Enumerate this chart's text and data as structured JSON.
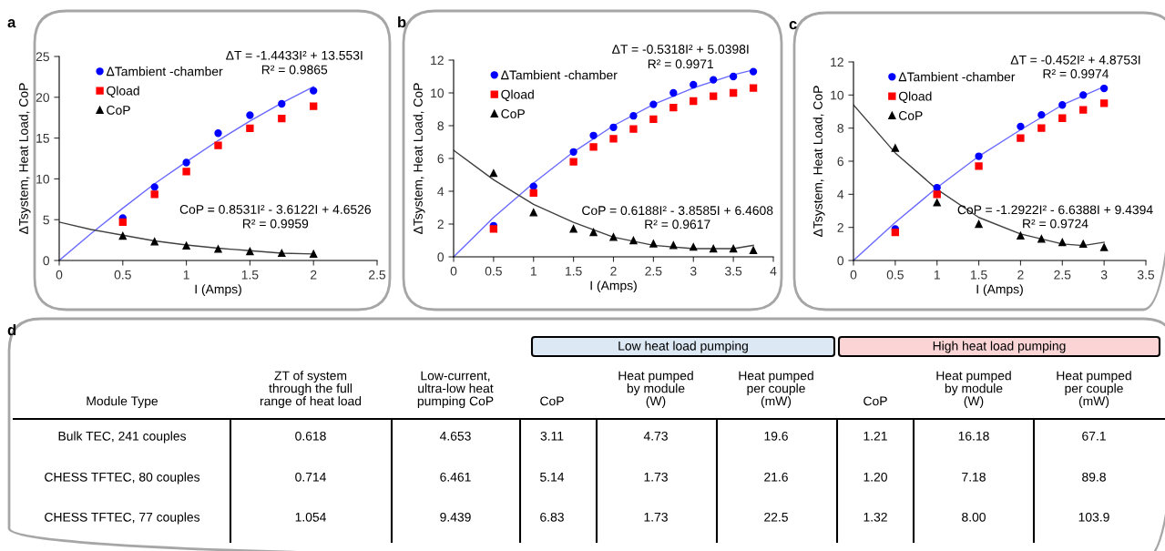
{
  "chart_data": [
    {
      "type": "scatter",
      "title": "a",
      "xlabel": "I (Amps)",
      "ylabel": "ΔTsystem, Heat Load, CoP",
      "xlim": [
        0,
        2.5
      ],
      "xticks": [
        0,
        0.5,
        1,
        1.5,
        2,
        2.5
      ],
      "ylim": [
        0,
        25
      ],
      "yticks": [
        0,
        5,
        10,
        15,
        20,
        25
      ],
      "legend": "top left",
      "grid": false,
      "x": [
        0.5,
        0.75,
        1,
        1.25,
        1.5,
        1.75,
        2
      ],
      "series": [
        {
          "name": "ΔTambient -chamber",
          "color": "#0000ff",
          "marker": "circle",
          "values": [
            5.2,
            9.0,
            12.0,
            15.6,
            17.8,
            19.2,
            20.8
          ]
        },
        {
          "name": "Qload",
          "color": "#ff0000",
          "marker": "square",
          "values": [
            4.7,
            8.1,
            10.9,
            14.1,
            16.2,
            17.4,
            18.9
          ]
        },
        {
          "name": "CoP",
          "color": "#000000",
          "marker": "triangle",
          "values": [
            3.0,
            2.3,
            1.8,
            1.4,
            1.1,
            0.9,
            0.8
          ]
        },
        {
          "type": "line",
          "color": "#6a6aff",
          "marker": "none",
          "x": [
            0,
            0.25,
            0.5,
            0.75,
            1,
            1.25,
            1.5,
            1.75,
            2
          ],
          "values": [
            0,
            3.3,
            6.4,
            9.4,
            12.1,
            14.7,
            17.1,
            19.3,
            21.3
          ]
        },
        {
          "type": "line",
          "color": "#404040",
          "marker": "none",
          "x": [
            0,
            0.25,
            0.5,
            0.75,
            1,
            1.25,
            1.5,
            1.75,
            2
          ],
          "values": [
            4.7,
            3.8,
            3.1,
            2.4,
            1.9,
            1.5,
            1.2,
            0.9,
            0.8
          ]
        }
      ],
      "annotations": [
        "ΔT = -1.4433I² + 13.553I",
        "R² = 0.9865",
        "CoP = 0.8531I² - 3.6122I + 4.6526",
        "R² = 0.9959"
      ]
    },
    {
      "type": "scatter",
      "title": "b",
      "xlabel": "I (Amps)",
      "ylabel": "ΔTsystem, Heat Load, CoP",
      "xlim": [
        0,
        4
      ],
      "xticks": [
        0,
        0.5,
        1,
        1.5,
        2,
        2.5,
        3,
        3.5,
        4
      ],
      "ylim": [
        0,
        12
      ],
      "yticks": [
        0,
        2,
        4,
        6,
        8,
        10,
        12
      ],
      "legend": "top left",
      "grid": false,
      "x": [
        0.5,
        1,
        1.5,
        1.75,
        2,
        2.25,
        2.5,
        2.75,
        3,
        3.25,
        3.5,
        3.75
      ],
      "series": [
        {
          "name": "ΔTambient -chamber",
          "color": "#0000ff",
          "marker": "circle",
          "values": [
            1.9,
            4.3,
            6.4,
            7.4,
            7.9,
            8.6,
            9.3,
            10.0,
            10.5,
            10.8,
            11.0,
            11.3
          ]
        },
        {
          "name": "Qload",
          "color": "#ff0000",
          "marker": "square",
          "values": [
            1.7,
            3.9,
            5.8,
            6.7,
            7.2,
            7.8,
            8.4,
            9.1,
            9.5,
            9.8,
            10.0,
            10.3
          ]
        },
        {
          "name": "CoP",
          "color": "#000000",
          "marker": "triangle",
          "values": [
            5.1,
            2.7,
            1.7,
            1.5,
            1.2,
            1.0,
            0.8,
            0.7,
            0.6,
            0.5,
            0.5,
            0.4
          ]
        },
        {
          "type": "line",
          "color": "#6a6aff",
          "marker": "none",
          "x": [
            0,
            0.5,
            1,
            1.5,
            2,
            2.5,
            3,
            3.5,
            3.75
          ],
          "values": [
            0,
            2.4,
            4.5,
            6.4,
            8.0,
            9.3,
            10.3,
            11.1,
            11.4
          ]
        },
        {
          "type": "line",
          "color": "#404040",
          "marker": "none",
          "x": [
            0,
            0.5,
            1,
            1.5,
            2,
            2.5,
            3,
            3.5,
            3.75
          ],
          "values": [
            6.5,
            4.7,
            3.2,
            2.1,
            1.2,
            0.7,
            0.5,
            0.5,
            0.7
          ]
        }
      ],
      "annotations": [
        "ΔT = -0.5318I² + 5.0398I",
        "R² = 0.9971",
        "CoP = 0.6188I² - 3.8585I + 6.4608",
        "R² = 0.9617"
      ]
    },
    {
      "type": "scatter",
      "title": "c",
      "xlabel": "I (Amps)",
      "ylabel": "ΔTsystem, Heat Load, CoP",
      "xlim": [
        0,
        3.5
      ],
      "xticks": [
        0,
        0.5,
        1,
        1.5,
        2,
        2.5,
        3,
        3.5
      ],
      "ylim": [
        0,
        12
      ],
      "yticks": [
        0,
        2,
        4,
        6,
        8,
        10,
        12
      ],
      "legend": "top left",
      "grid": false,
      "x": [
        0.5,
        1,
        1.5,
        2,
        2.25,
        2.5,
        2.75,
        3
      ],
      "series": [
        {
          "name": "ΔTambient -chamber",
          "color": "#0000ff",
          "marker": "circle",
          "values": [
            1.9,
            4.4,
            6.3,
            8.1,
            8.8,
            9.4,
            10.0,
            10.4
          ]
        },
        {
          "name": "Qload",
          "color": "#ff0000",
          "marker": "square",
          "values": [
            1.7,
            4.0,
            5.7,
            7.4,
            8.0,
            8.6,
            9.1,
            9.5
          ]
        },
        {
          "name": "CoP",
          "color": "#000000",
          "marker": "triangle",
          "values": [
            6.8,
            3.5,
            2.2,
            1.5,
            1.3,
            1.1,
            1.0,
            0.8
          ]
        },
        {
          "type": "line",
          "color": "#6a6aff",
          "marker": "none",
          "x": [
            0,
            0.5,
            1,
            1.5,
            2,
            2.5,
            3
          ],
          "values": [
            0,
            2.3,
            4.4,
            6.3,
            7.9,
            9.4,
            10.5
          ]
        },
        {
          "type": "line",
          "color": "#404040",
          "marker": "none",
          "x": [
            0,
            0.5,
            1,
            1.5,
            2,
            2.5,
            2.75,
            3
          ],
          "values": [
            9.4,
            6.5,
            4.3,
            2.6,
            1.6,
            1.0,
            0.9,
            1.1
          ]
        }
      ],
      "annotations": [
        "ΔT = -0.452I² + 4.8753I",
        "R² = 0.9974",
        "CoP = -1.2922I² - 6.6388I + 9.4394",
        "R² = 0.9724"
      ]
    },
    {
      "type": "other",
      "title": "d",
      "colors": [
        "#dce8f4",
        "#fbd5d6"
      ],
      "annotations": [
        "Low heat load pumping",
        "High heat load pumping",
        "Module Type",
        "ZT of system\nthrough the full\nrange of heat load",
        "Low-current,\nultra-low heat\npumping CoP",
        "CoP",
        "Heat pumped\nby module\n(W)",
        "Heat pumped\nper couple\n(mW)",
        "CoP",
        "Heat pumped\nby module\n(W)",
        "Heat pumped\nper couple\n(mW)",
        "Bulk TEC, 241 couples",
        "0.618",
        "4.653",
        "3.11",
        "4.73",
        "19.6",
        "1.21",
        "16.18",
        "67.1",
        "CHESS TFTEC, 80 couples",
        "0.714",
        "6.461",
        "5.14",
        "1.73",
        "21.6",
        "1.20",
        "7.18",
        "89.8",
        "CHESS TFTEC, 77 couples",
        "1.054",
        "9.439",
        "6.83",
        "1.73",
        "22.5",
        "1.32",
        "8.00",
        "103.9"
      ]
    }
  ]
}
